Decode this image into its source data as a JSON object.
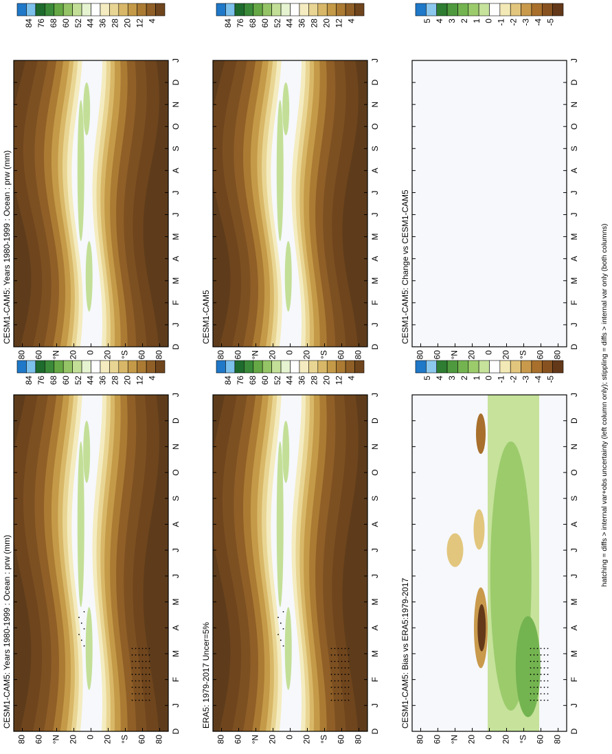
{
  "panels": [
    {
      "title": "CESM1-CAM5: Years 1980-1999 : Ocean : prw (mm)"
    },
    {
      "title": "CESM1-CAM5"
    },
    {
      "title": "CESM1-CAM5: Change vs CESM1-CAM5"
    },
    {
      "title": "CESM1-CAM5: Years 1980-1999 : Ocean : prw (mm)"
    },
    {
      "title": "ERA5: 1979-2017 Uncer=5%"
    },
    {
      "title": "CESM1-CAM5: Bias vs ERA5:1979-2017"
    }
  ],
  "month_labels": [
    "D",
    "J",
    "F",
    "M",
    "A",
    "M",
    "J",
    "J",
    "A",
    "S",
    "O",
    "N",
    "D",
    "J"
  ],
  "lat_labels": [
    "80",
    "60",
    "°N",
    "20",
    "0",
    "20",
    "°S",
    "60",
    "80"
  ],
  "prw_levels": [
    84,
    76,
    68,
    60,
    52,
    44,
    36,
    28,
    20,
    12,
    4
  ],
  "diff_levels": [
    5,
    4,
    3,
    2,
    1,
    0,
    -1,
    -2,
    -3,
    -4,
    -5
  ],
  "caption": "hatching = diffs > internal var+obs uncertainty (left column only); stippling = diffs > internal var only (both columns)"
}
